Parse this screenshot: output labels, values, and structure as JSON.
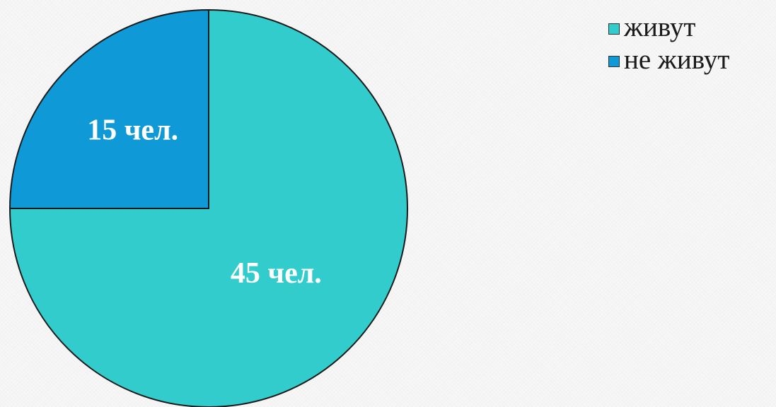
{
  "chart_data": {
    "type": "pie",
    "categories": [
      "живут",
      "не живут"
    ],
    "values": [
      45,
      15
    ],
    "data_labels": [
      "45 чел.",
      "15 чел."
    ],
    "colors": [
      "#33cccc",
      "#0f99d6"
    ],
    "start_angle_deg": 0,
    "direction": "clockwise",
    "legend_position": "top-right",
    "title": ""
  }
}
